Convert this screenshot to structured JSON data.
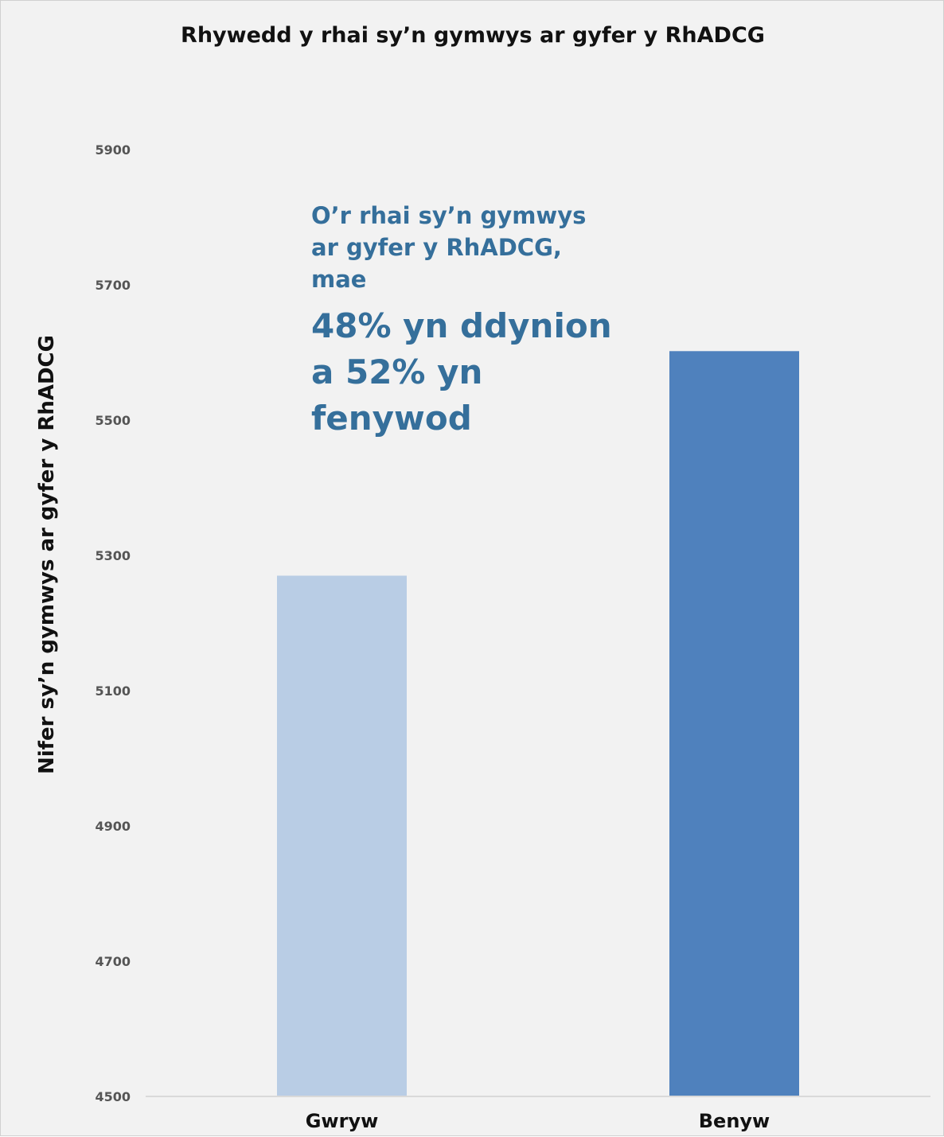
{
  "chart_data": {
    "type": "bar",
    "title": "Rhywedd y rhai sy’n gymwys ar gyfer y RhADCG",
    "ylabel": "Nifer sy’n gymwys ar gyfer y RhADCG",
    "xlabel": "",
    "categories": [
      "Gwryw",
      "Benyw"
    ],
    "values": [
      5270,
      5602
    ],
    "colors": [
      "#b9cde5",
      "#4f81bd"
    ],
    "ylim": [
      4500,
      5900
    ],
    "yticks": [
      4500,
      4700,
      4900,
      5100,
      5300,
      5500,
      5700,
      5900
    ],
    "grid": false,
    "legend": "none",
    "annotation": {
      "intro": "O’r rhai sy’n gymwys ar gyfer y RhADCG, mae",
      "highlight": "48% yn ddynion a 52% yn fenywod"
    }
  }
}
